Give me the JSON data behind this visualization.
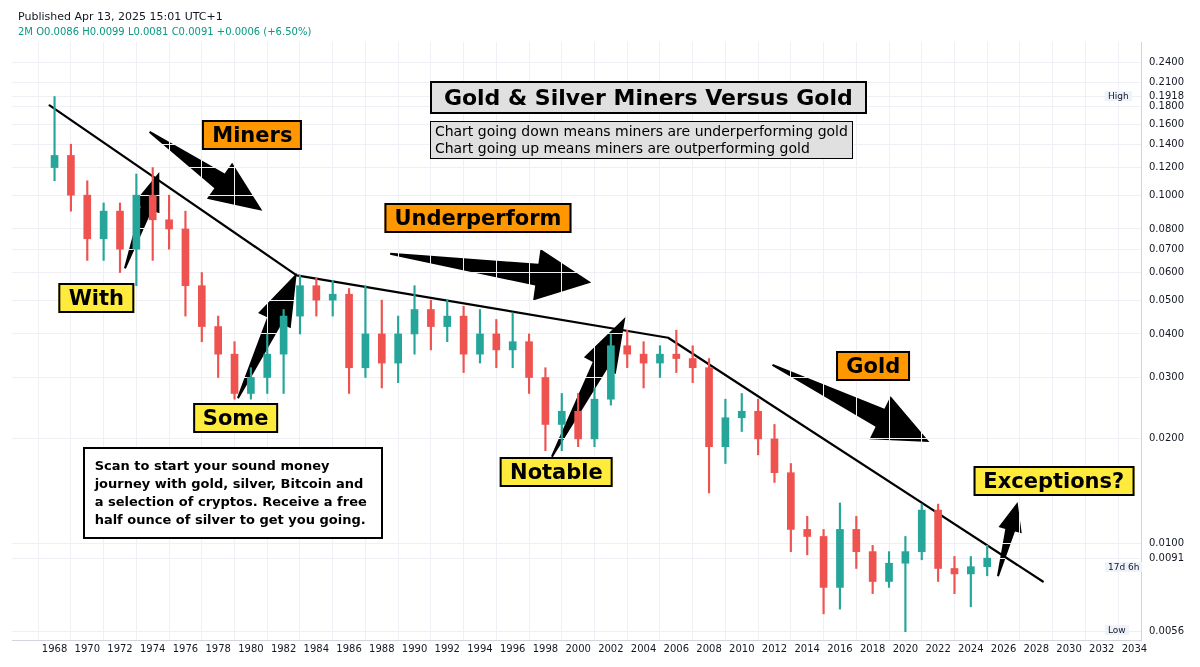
{
  "chart_data": {
    "type": "candlestick",
    "title": "Gold & Silver Miners Versus Gold",
    "subtitle": "2M  O0.0086 H0.0099 L0.0081 C0.0091 +0.0006 (+6.50%)",
    "x": [
      1968,
      1969,
      1970,
      1971,
      1972,
      1973,
      1974,
      1975,
      1976,
      1977,
      1978,
      1979,
      1980,
      1981,
      1982,
      1983,
      1984,
      1985,
      1986,
      1987,
      1988,
      1989,
      1990,
      1991,
      1992,
      1993,
      1994,
      1995,
      1996,
      1997,
      1998,
      1999,
      2000,
      2001,
      2002,
      2003,
      2004,
      2005,
      2006,
      2007,
      2008,
      2009,
      2010,
      2011,
      2012,
      2013,
      2014,
      2015,
      2016,
      2017,
      2018,
      2019,
      2020,
      2021,
      2022,
      2023,
      2024,
      2025
    ],
    "ohlc": [
      [
        0.12,
        0.1918,
        0.11,
        0.13
      ],
      [
        0.13,
        0.14,
        0.09,
        0.1
      ],
      [
        0.1,
        0.11,
        0.065,
        0.075
      ],
      [
        0.075,
        0.095,
        0.065,
        0.09
      ],
      [
        0.09,
        0.095,
        0.06,
        0.07
      ],
      [
        0.07,
        0.115,
        0.055,
        0.1
      ],
      [
        0.1,
        0.12,
        0.065,
        0.085
      ],
      [
        0.085,
        0.1,
        0.07,
        0.08
      ],
      [
        0.08,
        0.09,
        0.045,
        0.055
      ],
      [
        0.055,
        0.06,
        0.038,
        0.042
      ],
      [
        0.042,
        0.045,
        0.03,
        0.035
      ],
      [
        0.035,
        0.038,
        0.026,
        0.027
      ],
      [
        0.027,
        0.032,
        0.026,
        0.03
      ],
      [
        0.03,
        0.04,
        0.027,
        0.035
      ],
      [
        0.035,
        0.047,
        0.027,
        0.045
      ],
      [
        0.045,
        0.059,
        0.04,
        0.055
      ],
      [
        0.055,
        0.058,
        0.045,
        0.05
      ],
      [
        0.05,
        0.057,
        0.045,
        0.052
      ],
      [
        0.052,
        0.054,
        0.027,
        0.032
      ],
      [
        0.032,
        0.055,
        0.03,
        0.04
      ],
      [
        0.04,
        0.05,
        0.028,
        0.033
      ],
      [
        0.033,
        0.045,
        0.029,
        0.04
      ],
      [
        0.04,
        0.055,
        0.035,
        0.047
      ],
      [
        0.047,
        0.05,
        0.036,
        0.042
      ],
      [
        0.042,
        0.05,
        0.038,
        0.045
      ],
      [
        0.045,
        0.048,
        0.031,
        0.035
      ],
      [
        0.035,
        0.047,
        0.033,
        0.04
      ],
      [
        0.04,
        0.044,
        0.032,
        0.036
      ],
      [
        0.036,
        0.046,
        0.032,
        0.038
      ],
      [
        0.038,
        0.04,
        0.027,
        0.03
      ],
      [
        0.03,
        0.032,
        0.0185,
        0.022
      ],
      [
        0.022,
        0.027,
        0.0185,
        0.024
      ],
      [
        0.024,
        0.027,
        0.019,
        0.02
      ],
      [
        0.02,
        0.028,
        0.019,
        0.026
      ],
      [
        0.026,
        0.04,
        0.025,
        0.037
      ],
      [
        0.037,
        0.041,
        0.032,
        0.035
      ],
      [
        0.035,
        0.038,
        0.028,
        0.033
      ],
      [
        0.033,
        0.037,
        0.03,
        0.035
      ],
      [
        0.035,
        0.041,
        0.031,
        0.034
      ],
      [
        0.034,
        0.037,
        0.029,
        0.032
      ],
      [
        0.032,
        0.034,
        0.014,
        0.019
      ],
      [
        0.019,
        0.026,
        0.017,
        0.023
      ],
      [
        0.023,
        0.027,
        0.021,
        0.024
      ],
      [
        0.024,
        0.026,
        0.018,
        0.02
      ],
      [
        0.02,
        0.022,
        0.015,
        0.016
      ],
      [
        0.016,
        0.017,
        0.0095,
        0.011
      ],
      [
        0.011,
        0.012,
        0.0093,
        0.0105
      ],
      [
        0.0105,
        0.011,
        0.0063,
        0.0075
      ],
      [
        0.0075,
        0.0131,
        0.0065,
        0.011
      ],
      [
        0.011,
        0.012,
        0.0085,
        0.0095
      ],
      [
        0.0095,
        0.0099,
        0.0072,
        0.0078
      ],
      [
        0.0078,
        0.0095,
        0.0075,
        0.0088
      ],
      [
        0.0088,
        0.0105,
        0.0056,
        0.0095
      ],
      [
        0.0095,
        0.013,
        0.009,
        0.0125
      ],
      [
        0.0125,
        0.013,
        0.0078,
        0.0085
      ],
      [
        0.0085,
        0.0092,
        0.0072,
        0.0082
      ],
      [
        0.0082,
        0.0092,
        0.0066,
        0.0086
      ],
      [
        0.0086,
        0.0099,
        0.0081,
        0.0091
      ]
    ],
    "colors": [
      "#26a69a",
      "#ef5350",
      "#ef5350",
      "#26a69a",
      "#ef5350",
      "#26a69a",
      "#ef5350",
      "#ef5350",
      "#ef5350",
      "#ef5350",
      "#ef5350",
      "#ef5350",
      "#26a69a",
      "#26a69a",
      "#26a69a",
      "#26a69a",
      "#ef5350",
      "#26a69a",
      "#ef5350",
      "#26a69a",
      "#ef5350",
      "#26a69a",
      "#26a69a",
      "#ef5350",
      "#26a69a",
      "#ef5350",
      "#26a69a",
      "#ef5350",
      "#26a69a",
      "#ef5350",
      "#ef5350",
      "#26a69a",
      "#ef5350",
      "#26a69a",
      "#26a69a",
      "#ef5350",
      "#ef5350",
      "#26a69a",
      "#ef5350",
      "#ef5350",
      "#ef5350",
      "#26a69a",
      "#26a69a",
      "#ef5350",
      "#ef5350",
      "#ef5350",
      "#ef5350",
      "#ef5350",
      "#26a69a",
      "#ef5350",
      "#ef5350",
      "#26a69a",
      "#26a69a",
      "#26a69a",
      "#ef5350",
      "#ef5350",
      "#26a69a",
      "#26a69a"
    ],
    "series": [
      {
        "type": "line",
        "color": "#000000",
        "x": [
          1967.7,
          1982.8,
          2005.5,
          2028.4
        ],
        "values": [
          0.181,
          0.0589,
          0.039,
          0.0078
        ]
      }
    ],
    "log": "y",
    "xlim": [
      1965.4,
      2034.4
    ],
    "xticks": [
      1968,
      1970,
      1972,
      1974,
      1976,
      1978,
      1980,
      1982,
      1984,
      1986,
      1988,
      1990,
      1992,
      1994,
      1996,
      1998,
      2000,
      2002,
      2004,
      2006,
      2008,
      2010,
      2012,
      2014,
      2016,
      2018,
      2020,
      2022,
      2024,
      2026,
      2028,
      2030,
      2032,
      2034
    ],
    "ylim": [
      0.0053,
      0.275
    ],
    "yticks": [
      {
        "value": 0.0056,
        "label": "0.0056"
      },
      {
        "value": 0.0091,
        "label": "0.0091"
      },
      {
        "value": 0.01,
        "label": "0.0100"
      },
      {
        "value": 0.02,
        "label": "0.0200"
      },
      {
        "value": 0.03,
        "label": "0.0300"
      },
      {
        "value": 0.04,
        "label": "0.0400"
      },
      {
        "value": 0.05,
        "label": "0.0500"
      },
      {
        "value": 0.06,
        "label": "0.0600"
      },
      {
        "value": 0.07,
        "label": "0.0700"
      },
      {
        "value": 0.08,
        "label": "0.0800"
      },
      {
        "value": 0.1,
        "label": "0.1000"
      },
      {
        "value": 0.12,
        "label": "0.1200"
      },
      {
        "value": 0.14,
        "label": "0.1400"
      },
      {
        "value": 0.16,
        "label": "0.1600"
      },
      {
        "value": 0.18,
        "label": "0.1800"
      },
      {
        "value": 0.1918,
        "label": "0.1918"
      },
      {
        "value": 0.21,
        "label": "0.2100"
      },
      {
        "value": 0.24,
        "label": "0.2400"
      }
    ],
    "grid": true,
    "annotations": [
      "Published Apr 13, 2025 15:01 UTC+1",
      "Chart going down means miners are underperforming gold",
      "Chart going up means miners are outperforming gold",
      "Miners",
      "Underperform",
      "Gold",
      "With",
      "Some",
      "Notable",
      "Exceptions?",
      "Scan to start your sound money journey with gold, silver, Bitcoin and a selection of cryptos. Receive a free half ounce of silver to get you going.",
      "High",
      "Low",
      "17d 6h"
    ]
  }
}
